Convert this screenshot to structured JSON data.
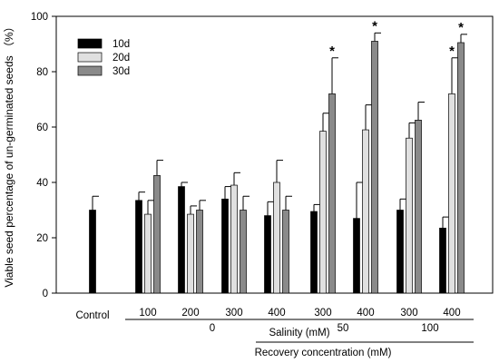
{
  "chart_data": {
    "type": "bar",
    "ylabel": "Viable seed percentage of un-germinated seeds （%）",
    "ylim": [
      0,
      100
    ],
    "yticks": [
      0,
      20,
      40,
      60,
      80,
      100
    ],
    "groups": [
      {
        "label": "Control"
      },
      {
        "label": "100"
      },
      {
        "label": "200"
      },
      {
        "label": "300"
      },
      {
        "label": "400"
      },
      {
        "label": "300"
      },
      {
        "label": "400"
      },
      {
        "label": "300"
      },
      {
        "label": "400"
      }
    ],
    "level2_labels": [
      "0",
      "50",
      "100"
    ],
    "level3_labels": [
      "Salinity (mM)",
      "Recovery concentration (mM)"
    ],
    "series": [
      {
        "name": "10d",
        "color": "#000000",
        "values": [
          30,
          33.5,
          38.5,
          34,
          28,
          29.5,
          27,
          30,
          23.5
        ],
        "errors": [
          5,
          3,
          1.5,
          4.5,
          5,
          2.5,
          13,
          4,
          4
        ],
        "stars": [
          false,
          false,
          false,
          false,
          false,
          false,
          false,
          false,
          false
        ]
      },
      {
        "name": "20d",
        "color": "#e0e0e0",
        "values": [
          null,
          28.5,
          28.5,
          39,
          40,
          58.5,
          59,
          56,
          72
        ],
        "errors": [
          null,
          5,
          3,
          4.5,
          8,
          6.5,
          9,
          5.5,
          13
        ],
        "stars": [
          false,
          false,
          false,
          false,
          false,
          false,
          false,
          false,
          true
        ]
      },
      {
        "name": "30d",
        "color": "#8a8a8a",
        "values": [
          null,
          42.5,
          30,
          30,
          30,
          72,
          91,
          62.5,
          90.5
        ],
        "errors": [
          null,
          5.5,
          3.5,
          5,
          5,
          13,
          3,
          6.5,
          3
        ],
        "stars": [
          false,
          false,
          false,
          false,
          false,
          true,
          true,
          false,
          true
        ]
      }
    ],
    "legend_position": "top-left",
    "star_symbol": "*"
  }
}
